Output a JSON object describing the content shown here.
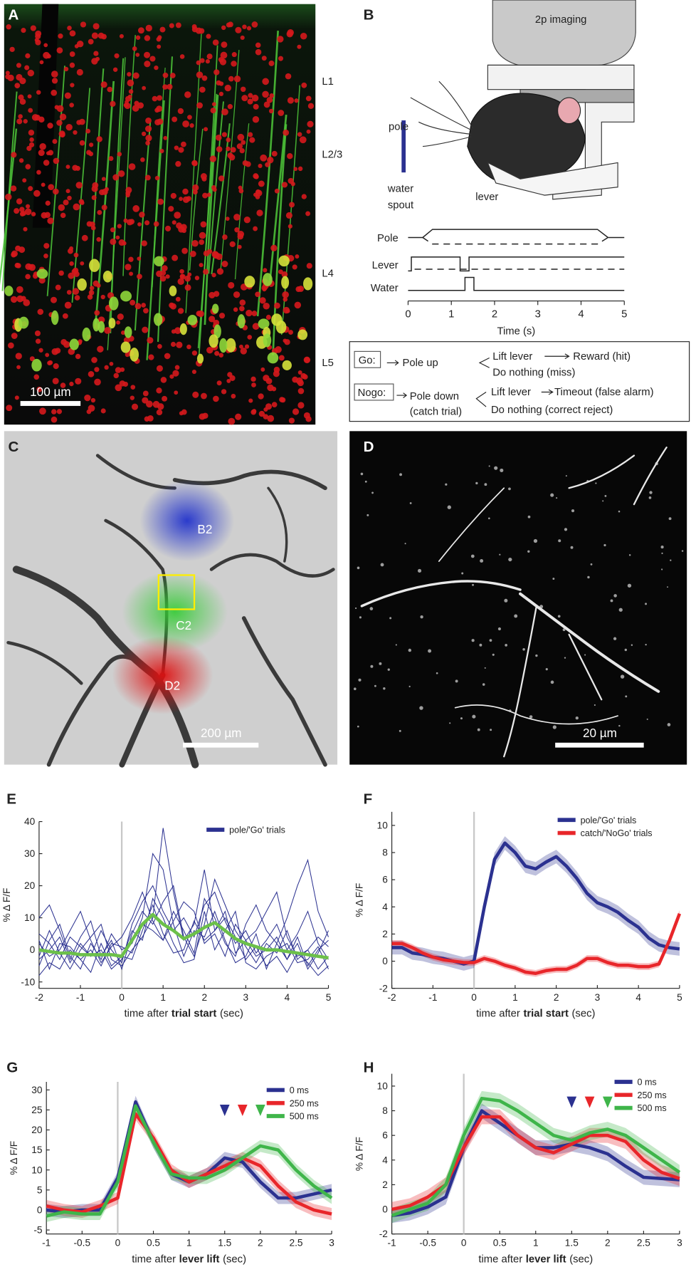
{
  "panel_a": {
    "letter": "A",
    "layers": [
      "L1",
      "L2/3",
      "L4",
      "L5"
    ],
    "scale_bar": "100 µm"
  },
  "panel_b": {
    "letter": "B",
    "imaging": "2p imaging",
    "pole": "pole",
    "water_spout": [
      "water",
      "spout"
    ],
    "lever": "lever",
    "timing": {
      "rows": [
        "Pole",
        "Lever",
        "Water"
      ],
      "xlim": [
        0,
        5
      ],
      "xticks": [
        0,
        1,
        2,
        3,
        4,
        5
      ],
      "xlabel": "Time (s)"
    },
    "go": {
      "label": "Go:",
      "cue": "Pole up",
      "hit": [
        "Lift lever",
        "Reward (hit)"
      ],
      "miss": "Do nothing (miss)"
    },
    "nogo": {
      "label": "Nogo:",
      "cue": [
        "Pole down",
        "(catch trial)"
      ],
      "false_alarm": [
        "Lift lever",
        "Timeout (false alarm)"
      ],
      "correct_reject": "Do nothing (correct reject)"
    }
  },
  "panel_c": {
    "letter": "C",
    "regions": [
      "B2",
      "C2",
      "D2"
    ],
    "scale_bar": "200 µm"
  },
  "panel_d": {
    "letter": "D",
    "scale_bar": "20 µm"
  },
  "chart_data": [
    {
      "type": "line",
      "letter": "E",
      "ylabel": "% Δ F/F",
      "xlabel": [
        "time after",
        "trial start",
        "(sec)"
      ],
      "xlabel_bold": 1,
      "xlim": [
        -2,
        5
      ],
      "xticks": [
        -2,
        -1,
        0,
        1,
        2,
        3,
        4,
        5
      ],
      "ylim": [
        -12,
        40
      ],
      "yticks": [
        -10,
        0,
        10,
        20,
        30,
        40
      ],
      "vline": 0,
      "legend": "upper right",
      "x": [
        -2,
        -1.75,
        -1.5,
        -1.25,
        -1,
        -0.75,
        -0.5,
        -0.25,
        0,
        0.25,
        0.5,
        0.75,
        1,
        1.25,
        1.5,
        1.75,
        2,
        2.25,
        2.5,
        2.75,
        3,
        3.25,
        3.5,
        3.75,
        4,
        4.25,
        4.5,
        4.75,
        5
      ],
      "series": [
        {
          "name": "pole/'Go' trials",
          "color": "#2b3190",
          "traces": [
            [
              5,
              2,
              -3,
              4,
              1,
              -2,
              6,
              0,
              -4,
              8,
              15,
              20,
              12,
              6,
              10,
              4,
              14,
              18,
              9,
              2,
              6,
              -1,
              3,
              8,
              0,
              5,
              12,
              2,
              -3
            ],
            [
              -5,
              3,
              8,
              -2,
              -6,
              2,
              -3,
              5,
              0,
              2,
              10,
              30,
              25,
              8,
              -2,
              6,
              4,
              12,
              3,
              -4,
              -2,
              5,
              -6,
              2,
              -3,
              4,
              -5,
              0,
              3
            ],
            [
              10,
              14,
              6,
              -3,
              4,
              9,
              -2,
              3,
              -6,
              5,
              12,
              8,
              15,
              20,
              4,
              -2,
              8,
              22,
              14,
              6,
              1,
              -4,
              2,
              -1,
              6,
              -3,
              0,
              -6,
              -2
            ],
            [
              -8,
              -4,
              -6,
              0,
              -3,
              -7,
              2,
              -5,
              -2,
              -3,
              6,
              14,
              5,
              -1,
              0,
              9,
              3,
              6,
              10,
              4,
              -3,
              1,
              -5,
              -2,
              -7,
              -1,
              -4,
              -8,
              -5
            ],
            [
              2,
              -2,
              0,
              6,
              12,
              3,
              -4,
              1,
              4,
              10,
              18,
              9,
              3,
              12,
              6,
              -1,
              16,
              10,
              2,
              -2,
              8,
              14,
              6,
              2,
              10,
              20,
              28,
              12,
              4
            ],
            [
              -2,
              6,
              -1,
              -6,
              0,
              4,
              8,
              -3,
              -5,
              0,
              4,
              10,
              38,
              18,
              3,
              8,
              25,
              6,
              12,
              -1,
              3,
              -2,
              0,
              4,
              -3,
              2,
              -6,
              -1,
              6
            ],
            [
              3,
              -6,
              2,
              1,
              -3,
              0,
              -5,
              2,
              1,
              -1,
              8,
              6,
              3,
              9,
              15,
              12,
              2,
              5,
              -2,
              8,
              3,
              6,
              12,
              18,
              4,
              -2,
              0,
              4,
              1
            ],
            [
              -3,
              0,
              4,
              -4,
              2,
              -2,
              0,
              -6,
              -3,
              6,
              3,
              16,
              10,
              2,
              -4,
              -3,
              12,
              0,
              6,
              12,
              -4,
              -6,
              -2,
              0,
              2,
              -4,
              -3,
              1,
              -6
            ]
          ]
        },
        {
          "color": "#6cc04a",
          "values": [
            0,
            -0.5,
            -1,
            -1,
            -1.5,
            -1.5,
            -1.5,
            -1.5,
            -2,
            3,
            8,
            11,
            8,
            6,
            3.5,
            5,
            7,
            8.5,
            6,
            3.5,
            2,
            1,
            0,
            0,
            -0.5,
            -1,
            -1.5,
            -2,
            -2.5
          ]
        }
      ]
    },
    {
      "type": "line",
      "letter": "F",
      "ylabel": "% Δ F/F",
      "xlabel": [
        "time after",
        "trial start",
        "(sec)"
      ],
      "xlabel_bold": 1,
      "xlim": [
        -2,
        5
      ],
      "xticks": [
        -2,
        -1,
        0,
        1,
        2,
        3,
        4,
        5
      ],
      "ylim": [
        -2,
        11
      ],
      "yticks": [
        -2,
        0,
        2,
        4,
        6,
        8,
        10
      ],
      "vline": 0,
      "legend": "upper right",
      "x": [
        -2,
        -1.75,
        -1.5,
        -1.25,
        -1,
        -0.75,
        -0.5,
        -0.25,
        0,
        0.25,
        0.5,
        0.75,
        1,
        1.25,
        1.5,
        1.75,
        2,
        2.25,
        2.5,
        2.75,
        3,
        3.25,
        3.5,
        3.75,
        4,
        4.25,
        4.5,
        4.75,
        5
      ],
      "series": [
        {
          "name": "pole/'Go' trials",
          "color": "#2b3190",
          "error": 0.5,
          "values": [
            1,
            1,
            0.6,
            0.5,
            0.3,
            0.2,
            0,
            -0.2,
            0,
            4,
            7.5,
            8.7,
            8,
            7,
            6.8,
            7.3,
            7.7,
            7,
            6.1,
            5,
            4.3,
            4,
            3.6,
            3,
            2.5,
            1.7,
            1.2,
            1,
            0.9
          ]
        },
        {
          "name": "catch/'NoGo' trials",
          "color": "#e8262a",
          "error": 0.25,
          "values": [
            1.3,
            1.3,
            1,
            0.6,
            0.3,
            0.1,
            0,
            -0.1,
            -0.1,
            0.2,
            0,
            -0.3,
            -0.5,
            -0.8,
            -0.9,
            -0.7,
            -0.6,
            -0.6,
            -0.3,
            0.2,
            0.2,
            -0.1,
            -0.3,
            -0.3,
            -0.4,
            -0.4,
            -0.2,
            1.5,
            3.5
          ]
        }
      ]
    },
    {
      "type": "line",
      "letter": "G",
      "ylabel": "% Δ F/F",
      "xlabel": [
        "time after",
        "lever lift",
        "(sec)"
      ],
      "xlabel_bold": 1,
      "xlim": [
        -1,
        3
      ],
      "xticks": [
        -1,
        -0.5,
        0,
        0.5,
        1,
        1.5,
        2,
        2.5,
        3
      ],
      "ylim": [
        -6,
        32
      ],
      "yticks": [
        -5,
        0,
        5,
        10,
        15,
        20,
        25,
        30
      ],
      "vline": 0,
      "legend": "upper right",
      "x": [
        -1,
        -0.75,
        -0.5,
        -0.25,
        0,
        0.25,
        0.5,
        0.75,
        1,
        1.25,
        1.5,
        1.75,
        2,
        2.25,
        2.5,
        2.75,
        3
      ],
      "arrowheads": [
        1.5,
        1.75,
        2
      ],
      "series": [
        {
          "name": "0 ms",
          "color": "#2b3190",
          "error": 1.5,
          "values": [
            0,
            -0.5,
            0,
            0,
            8,
            27,
            17,
            9,
            7,
            9,
            13,
            12,
            7,
            3,
            3,
            4,
            5
          ]
        },
        {
          "name": "250 ms",
          "color": "#e8262a",
          "error": 1.5,
          "values": [
            1,
            0,
            -0.5,
            1,
            3,
            24,
            18,
            10,
            7,
            9,
            11,
            13,
            11,
            6,
            2,
            0,
            -1
          ]
        },
        {
          "name": "500 ms",
          "color": "#3fb54a",
          "error": 1.5,
          "values": [
            -1.5,
            -0.5,
            -1,
            -1,
            7,
            26,
            17,
            9,
            8,
            8,
            10,
            13,
            16,
            15,
            10,
            6,
            3
          ]
        }
      ]
    },
    {
      "type": "line",
      "letter": "H",
      "ylabel": "% Δ F/F",
      "xlabel": [
        "time after",
        "lever lift",
        "(sec)"
      ],
      "xlabel_bold": 1,
      "xlim": [
        -1,
        3
      ],
      "xticks": [
        -1,
        -0.5,
        0,
        0.5,
        1,
        1.5,
        2,
        2.5,
        3
      ],
      "ylim": [
        -2,
        11
      ],
      "yticks": [
        -2,
        0,
        2,
        4,
        6,
        8,
        10
      ],
      "vline": 0,
      "legend": "upper right",
      "x": [
        -1,
        -0.75,
        -0.5,
        -0.25,
        0,
        0.25,
        0.5,
        0.75,
        1,
        1.25,
        1.5,
        1.75,
        2,
        2.25,
        2.5,
        2.75,
        3
      ],
      "arrowheads": [
        1.5,
        1.75,
        2
      ],
      "series": [
        {
          "name": "0 ms",
          "color": "#2b3190",
          "error": 0.6,
          "values": [
            -0.5,
            -0.3,
            0.2,
            1,
            5,
            8,
            7,
            6,
            5,
            5,
            5.3,
            5,
            4.5,
            3.5,
            2.6,
            2.5,
            2.4
          ]
        },
        {
          "name": "250 ms",
          "color": "#e8262a",
          "error": 0.6,
          "values": [
            0,
            0.3,
            1,
            2,
            5,
            7.5,
            7.5,
            6,
            5,
            4.6,
            5.3,
            6,
            6,
            5.5,
            4,
            3,
            2.5
          ]
        },
        {
          "name": "500 ms",
          "color": "#3fb54a",
          "error": 0.6,
          "values": [
            -0.5,
            0,
            0.5,
            2,
            6,
            9,
            8.8,
            8,
            7,
            6,
            5.6,
            6.2,
            6.5,
            6,
            5,
            4,
            3
          ]
        }
      ]
    }
  ]
}
